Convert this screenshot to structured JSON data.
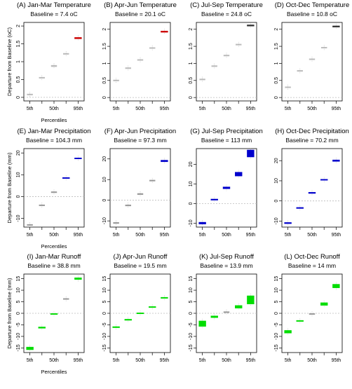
{
  "chart_data": [
    {
      "type": "box",
      "title": "(A) Jan-Mar Temperature",
      "subtitle": "Baseline = 7.4 oC",
      "xlabel": "Percentiles",
      "ylabel": "Departure from Baseline (oC)",
      "categories": [
        "5th",
        "50th",
        "95th"
      ],
      "x_positions": [
        "5th",
        "25th",
        "50th",
        "75th",
        "95th"
      ],
      "ylim": [
        -0.1,
        2.1
      ],
      "yticks": [
        0.0,
        0.5,
        1.0,
        1.5,
        2.0
      ],
      "values": [
        0.08,
        0.55,
        0.88,
        1.22,
        1.66
      ],
      "box_halfwidths": [
        0.01,
        0.01,
        0.02,
        0.01,
        0.02
      ],
      "fill": [
        "#bbbbbb",
        "#bbbbbb",
        "#bbbbbb",
        "#bbbbbb",
        "#cc0000"
      ],
      "baseline_line": 0
    },
    {
      "type": "box",
      "title": "(B) Apr-Jun Temperature",
      "subtitle": "Baseline = 20.1 oC",
      "xlabel": "",
      "ylabel": "",
      "categories": [
        "5th",
        "50th",
        "95th"
      ],
      "x_positions": [
        "5th",
        "25th",
        "50th",
        "75th",
        "95th"
      ],
      "ylim": [
        -0.1,
        2.2
      ],
      "yticks": [
        0.0,
        0.5,
        1.0,
        1.5,
        2.0
      ],
      "values": [
        0.5,
        0.86,
        1.1,
        1.45,
        1.93
      ],
      "box_halfwidths": [
        0.01,
        0.01,
        0.01,
        0.01,
        0.02
      ],
      "fill": [
        "#bbbbbb",
        "#bbbbbb",
        "#bbbbbb",
        "#bbbbbb",
        "#cc0000"
      ],
      "baseline_line": 0
    },
    {
      "type": "box",
      "title": "(C) Jul-Sep Temperature",
      "subtitle": "Baseline = 24.8 oC",
      "xlabel": "",
      "ylabel": "",
      "categories": [
        "5th",
        "50th",
        "95th"
      ],
      "x_positions": [
        "5th",
        "25th",
        "50th",
        "75th",
        "95th"
      ],
      "ylim": [
        -0.1,
        2.2
      ],
      "yticks": [
        0.0,
        0.5,
        1.0,
        1.5,
        2.0
      ],
      "values": [
        0.53,
        0.92,
        1.23,
        1.55,
        2.11
      ],
      "box_halfwidths": [
        0.01,
        0.01,
        0.01,
        0.01,
        0.02
      ],
      "fill": [
        "#bbbbbb",
        "#bbbbbb",
        "#bbbbbb",
        "#bbbbbb",
        "#333333"
      ],
      "baseline_line": 0
    },
    {
      "type": "box",
      "title": "(D) Oct-Dec Temperature",
      "subtitle": "Baseline = 10.8 oC",
      "xlabel": "",
      "ylabel": "",
      "categories": [
        "5th",
        "50th",
        "95th"
      ],
      "x_positions": [
        "5th",
        "25th",
        "50th",
        "75th",
        "95th"
      ],
      "ylim": [
        -0.1,
        2.2
      ],
      "yticks": [
        0.0,
        0.5,
        1.0,
        1.5,
        2.0
      ],
      "values": [
        0.3,
        0.78,
        1.12,
        1.46,
        2.08
      ],
      "box_halfwidths": [
        0.01,
        0.01,
        0.01,
        0.01,
        0.02
      ],
      "fill": [
        "#bbbbbb",
        "#bbbbbb",
        "#bbbbbb",
        "#bbbbbb",
        "#333333"
      ],
      "baseline_line": 0
    },
    {
      "type": "box",
      "title": "(E) Jan-Mar Precipitation",
      "subtitle": "Baseline = 104.3 mm",
      "xlabel": "Percentiles",
      "ylabel": "Departure from Baseline (mm)",
      "categories": [
        "5th",
        "50th",
        "95th"
      ],
      "x_positions": [
        "5th",
        "25th",
        "50th",
        "75th",
        "95th"
      ],
      "ylim": [
        -14,
        22
      ],
      "yticks": [
        -10,
        0,
        10,
        20
      ],
      "values": [
        -13,
        -4,
        2,
        8.5,
        17.5
      ],
      "box_halfwidths": [
        0.15,
        0.2,
        0.2,
        0.2,
        0.2
      ],
      "fill": [
        "#999999",
        "#999999",
        "#999999",
        "#0000cc",
        "#0000cc"
      ],
      "baseline_line": 0
    },
    {
      "type": "box",
      "title": "(F) Apr-Jun Precipitation",
      "subtitle": "Baseline = 97.3 mm",
      "xlabel": "",
      "ylabel": "",
      "categories": [
        "5th",
        "50th",
        "95th"
      ],
      "x_positions": [
        "5th",
        "25th",
        "50th",
        "75th",
        "95th"
      ],
      "ylim": [
        -13,
        25
      ],
      "yticks": [
        -10,
        0,
        10,
        20
      ],
      "values": [
        -11,
        -2.5,
        3,
        9.5,
        19
      ],
      "box_halfwidths": [
        0.3,
        0.3,
        0.3,
        0.2,
        0.4
      ],
      "fill": [
        "#999999",
        "#999999",
        "#999999",
        "#999999",
        "#0000cc"
      ],
      "baseline_line": 0
    },
    {
      "type": "box",
      "title": "(G) Jul-Sep Precipitation",
      "subtitle": "Baseline = 113 mm",
      "xlabel": "",
      "ylabel": "",
      "categories": [
        "5th",
        "50th",
        "95th"
      ],
      "x_positions": [
        "5th",
        "25th",
        "50th",
        "75th",
        "95th"
      ],
      "ylim": [
        -12,
        28
      ],
      "yticks": [
        -10,
        0,
        10,
        20
      ],
      "values": [
        -10,
        2,
        8,
        15,
        25.5
      ],
      "box_halfwidths": [
        0.5,
        0.3,
        0.5,
        1.0,
        1.8
      ],
      "fill": [
        "#0000cc",
        "#0000cc",
        "#0000cc",
        "#0000cc",
        "#0000cc"
      ],
      "baseline_line": 0
    },
    {
      "type": "box",
      "title": "(H) Oct-Dec Precipitation",
      "subtitle": "Baseline = 70.2 mm",
      "xlabel": "",
      "ylabel": "",
      "categories": [
        "5th",
        "50th",
        "95th"
      ],
      "x_positions": [
        "5th",
        "25th",
        "50th",
        "75th",
        "95th"
      ],
      "ylim": [
        -13,
        26
      ],
      "yticks": [
        -10,
        0,
        10,
        20
      ],
      "values": [
        -11,
        -3.5,
        4,
        10.5,
        20
      ],
      "box_halfwidths": [
        0.3,
        0.2,
        0.3,
        0.2,
        0.4
      ],
      "fill": [
        "#0000cc",
        "#0000cc",
        "#0000cc",
        "#0000cc",
        "#0000cc"
      ],
      "baseline_line": 0
    },
    {
      "type": "box",
      "title": "(I) Jan-Mar Runoff",
      "subtitle": "Baseline = 38.8 mm",
      "xlabel": "Percentiles",
      "ylabel": "Departure from Baseline (mm)",
      "categories": [
        "5th",
        "50th",
        "95th"
      ],
      "x_positions": [
        "5th",
        "25th",
        "50th",
        "75th",
        "95th"
      ],
      "ylim": [
        -17,
        17
      ],
      "yticks": [
        -15,
        -10,
        -5,
        0,
        5,
        10,
        15
      ],
      "values": [
        -15.2,
        -6.2,
        -0.3,
        6.2,
        15
      ],
      "box_halfwidths": [
        0.6,
        0.3,
        0.2,
        0.2,
        0.4
      ],
      "fill": [
        "#00dd00",
        "#00dd00",
        "#00dd00",
        "#999999",
        "#00dd00"
      ],
      "baseline_line": 0
    },
    {
      "type": "box",
      "title": "(J) Apr-Jun Runoff",
      "subtitle": "Baseline = 19.5 mm",
      "xlabel": "",
      "ylabel": "",
      "categories": [
        "5th",
        "50th",
        "95th"
      ],
      "x_positions": [
        "5th",
        "25th",
        "50th",
        "75th",
        "95th"
      ],
      "ylim": [
        -17,
        17
      ],
      "yticks": [
        -15,
        -10,
        -5,
        0,
        5,
        10,
        15
      ],
      "values": [
        -6,
        -2.8,
        0,
        2.7,
        6.7
      ],
      "box_halfwidths": [
        0.25,
        0.25,
        0.2,
        0.2,
        0.25
      ],
      "fill": [
        "#00dd00",
        "#00dd00",
        "#00dd00",
        "#00dd00",
        "#00dd00"
      ],
      "baseline_line": 0
    },
    {
      "type": "box",
      "title": "(K) Jul-Sep Runoff",
      "subtitle": "Baseline = 13.9 mm",
      "xlabel": "",
      "ylabel": "",
      "categories": [
        "5th",
        "50th",
        "95th"
      ],
      "x_positions": [
        "5th",
        "25th",
        "50th",
        "75th",
        "95th"
      ],
      "ylim": [
        -17,
        17
      ],
      "yticks": [
        -15,
        -10,
        -5,
        0,
        5,
        10,
        15
      ],
      "values": [
        -4.5,
        -1.5,
        0.5,
        2.8,
        5.8
      ],
      "box_halfwidths": [
        1.2,
        0.4,
        0.2,
        0.6,
        1.8
      ],
      "fill": [
        "#00dd00",
        "#00dd00",
        "#999999",
        "#00dd00",
        "#00dd00"
      ],
      "baseline_line": 0
    },
    {
      "type": "box",
      "title": "(L) Oct-Dec Runoff",
      "subtitle": "Baseline = 14 mm",
      "xlabel": "",
      "ylabel": "",
      "categories": [
        "5th",
        "50th",
        "95th"
      ],
      "x_positions": [
        "5th",
        "25th",
        "50th",
        "75th",
        "95th"
      ],
      "ylim": [
        -17,
        17
      ],
      "yticks": [
        -15,
        -10,
        -5,
        0,
        5,
        10,
        15
      ],
      "values": [
        -8,
        -3.3,
        -0.3,
        4,
        11.8
      ],
      "box_halfwidths": [
        0.6,
        0.2,
        0.2,
        0.6,
        0.8
      ],
      "fill": [
        "#00dd00",
        "#00dd00",
        "#999999",
        "#00dd00",
        "#00dd00"
      ],
      "baseline_line": 0
    }
  ]
}
